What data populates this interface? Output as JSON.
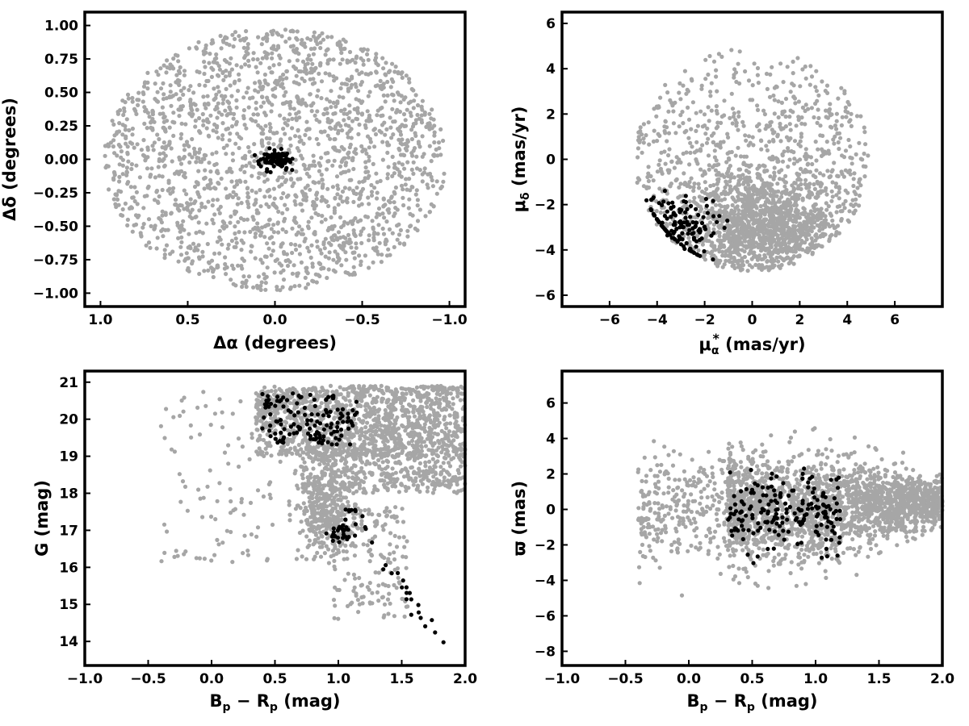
{
  "colors": {
    "field": "#a6a6a6",
    "members": "#000000"
  },
  "chart_data": [
    {
      "type": "scatter",
      "panel": "sky-position",
      "xlabel_main": "Δα",
      "xlabel_suffix": " (degrees)",
      "ylabel_main": "Δδ",
      "ylabel_suffix": " (degrees)",
      "xlim": [
        1.09,
        -1.09
      ],
      "ylim": [
        -1.1,
        1.1
      ],
      "xticks": [
        1.0,
        0.5,
        0.0,
        -0.5,
        -1.0
      ],
      "xtick_labels": [
        "1.0",
        "0.5",
        "0.0",
        "−0.5",
        "−1.0"
      ],
      "yticks": [
        -1.0,
        -0.75,
        -0.5,
        -0.25,
        0.0,
        0.25,
        0.5,
        0.75,
        1.0
      ],
      "ytick_labels": [
        "−1.00",
        "−0.75",
        "−0.50",
        "−0.25",
        "0.00",
        "0.25",
        "0.50",
        "0.75",
        "1.00"
      ],
      "series": [
        {
          "color": "#a6a6a6",
          "count": 2000,
          "distribution": "uniform disk of radius 1.0 degree centred at (0, 0)"
        },
        {
          "color": "#000000",
          "count": 90,
          "distribution": "compact clump at (0, 0), spread about 0.05 degree"
        }
      ],
      "grid": false
    },
    {
      "type": "scatter",
      "panel": "proper-motion",
      "xlabel_main": "μ",
      "xlabel_sub": "α",
      "xlabel_sup": "*",
      "xlabel_suffix": "  (mas/yr)",
      "ylabel_main": "μ",
      "ylabel_sub": "δ",
      "ylabel_suffix": " (mas/yr)",
      "xlim": [
        -8,
        8
      ],
      "ylim": [
        -6.5,
        6.5
      ],
      "xticks": [
        -6,
        -4,
        -2,
        0,
        2,
        4,
        6
      ],
      "xtick_labels": [
        "−6",
        "−4",
        "−2",
        "0",
        "2",
        "4",
        "6"
      ],
      "yticks": [
        -6,
        -4,
        -2,
        0,
        2,
        4,
        6
      ],
      "ytick_labels": [
        "−6",
        "−4",
        "−2",
        "0",
        "2",
        "4",
        "6"
      ],
      "series": [
        {
          "color": "#a6a6a6",
          "count": 2000,
          "distribution": "field stars inside a circle of radius 5 mas/yr centred at (0, 0), clipped above −5, concentrated near (0.5, −3)"
        },
        {
          "color": "#000000",
          "count": 140,
          "distribution": "members clumped near (−3, −3), spread about 0.8 mas/yr"
        }
      ],
      "grid": false
    },
    {
      "type": "scatter",
      "panel": "colour-magnitude",
      "xlabel_main": "B",
      "xlabel_sub": "p",
      "xlabel_mid": " − R",
      "xlabel_sub2": "p",
      "xlabel_suffix": " (mag)",
      "ylabel_main": "G (mag)",
      "xlim": [
        -1.0,
        2.0
      ],
      "ylim": [
        13.35,
        21.3
      ],
      "xticks": [
        -1.0,
        -0.5,
        0.0,
        0.5,
        1.0,
        1.5,
        2.0
      ],
      "xtick_labels": [
        "−1.0",
        "−0.5",
        "0.0",
        "0.5",
        "1.0",
        "1.5",
        "2.0"
      ],
      "yticks": [
        14,
        15,
        16,
        17,
        18,
        19,
        20,
        21
      ],
      "ytick_labels": [
        "14",
        "15",
        "16",
        "17",
        "18",
        "19",
        "20",
        "21"
      ],
      "series": [
        {
          "color": "#a6a6a6",
          "count": 2400,
          "distribution": "dense band at G 19–20.8 for colour 0.3–2.0, a clump near (0.9, 17–18.5), sparse bright tail"
        },
        {
          "color": "#000000",
          "count": 190,
          "distribution": "members near G 19.5–20.7 at colour 0.4–1.1, a clump near (1.0, 16.9) and a sequence to (1.77, 14.0)"
        }
      ],
      "grid": false
    },
    {
      "type": "scatter",
      "panel": "parallax",
      "xlabel_main": "B",
      "xlabel_sub": "p",
      "xlabel_mid": " − R",
      "xlabel_sub2": "p",
      "xlabel_suffix": " (mag)",
      "ylabel_main": "ϖ (mas)",
      "xlim": [
        -1.0,
        2.0
      ],
      "ylim": [
        -8.8,
        7.8
      ],
      "xticks": [
        -1.0,
        -0.5,
        0.0,
        0.5,
        1.0,
        1.5,
        2.0
      ],
      "xtick_labels": [
        "−1.0",
        "−0.5",
        "0.0",
        "0.5",
        "1.0",
        "1.5",
        "2.0"
      ],
      "yticks": [
        -8,
        -6,
        -4,
        -2,
        0,
        2,
        4,
        6
      ],
      "ytick_labels": [
        "−8",
        "−6",
        "−4",
        "−2",
        "0",
        "2",
        "4",
        "6"
      ],
      "series": [
        {
          "color": "#a6a6a6",
          "count": 2400,
          "distribution": "parallax centred on 0, spread about 1.5 mas at colour 0.5, narrowing to about 0.5 mas at colour 2.0"
        },
        {
          "color": "#000000",
          "count": 190,
          "distribution": "parallax centred on 0, spread about 1.2 mas, at colour 0.3–1.2"
        }
      ],
      "grid": false
    }
  ]
}
